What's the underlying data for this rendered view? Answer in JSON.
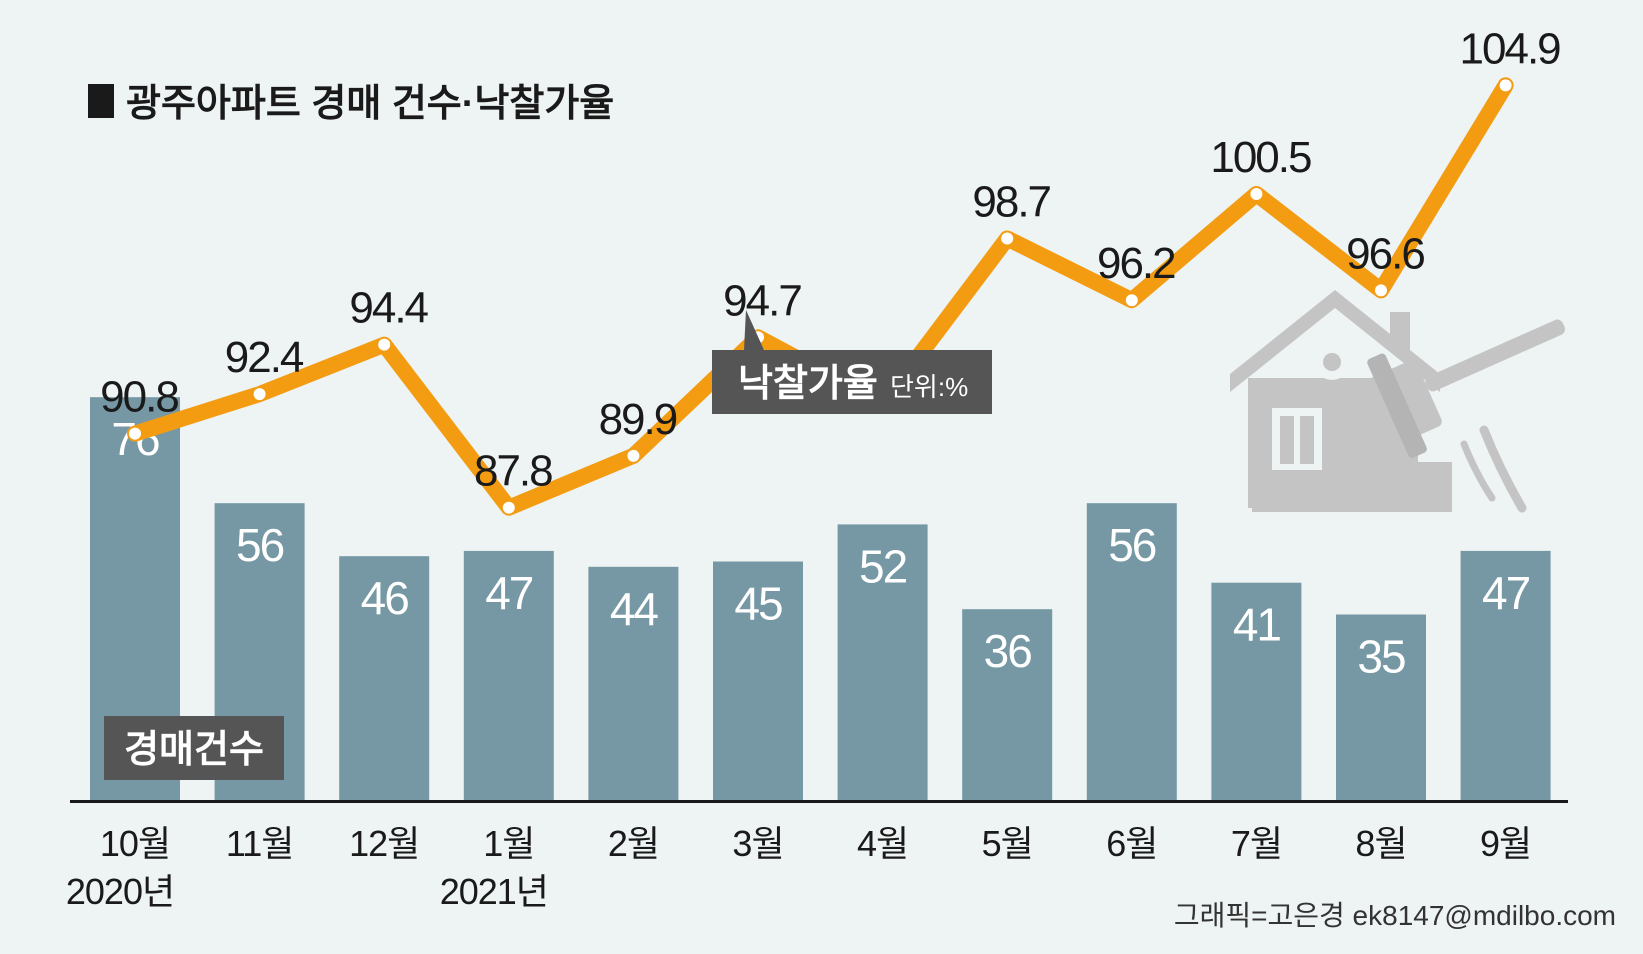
{
  "chart_data": {
    "type": "bar",
    "title": "광주아파트 경매 건수·낙찰가율",
    "categories": [
      "10월",
      "11월",
      "12월",
      "1월",
      "2월",
      "3월",
      "4월",
      "5월",
      "6월",
      "7월",
      "8월",
      "9월"
    ],
    "year_labels": [
      {
        "category_index": 0,
        "label": "2020년"
      },
      {
        "category_index": 3,
        "label": "2021년"
      }
    ],
    "series": [
      {
        "name": "경매건수",
        "type": "bar",
        "values": [
          76,
          56,
          46,
          47,
          44,
          45,
          52,
          36,
          56,
          41,
          35,
          47
        ],
        "color": "#7598a4"
      },
      {
        "name": "낙찰가율",
        "type": "line",
        "unit_label": "단위:%",
        "values": [
          90.8,
          92.4,
          94.4,
          87.8,
          89.9,
          94.7,
          92.0,
          98.7,
          96.2,
          100.5,
          96.6,
          104.9
        ],
        "color": "#f39c12"
      }
    ],
    "legend_labels": {
      "bar": "경매건수",
      "line": "낙찰가율",
      "line_unit": "단위:%"
    },
    "grid": false
  },
  "credit": "그래픽=고은경 ek8147@mdilbo.com",
  "colors": {
    "background": "#eef3f3",
    "bar": "#7598a4",
    "line": "#f39c12",
    "tag": "#555555",
    "illustration": "#c4c4c4"
  },
  "icons": [
    "house-auction-gavel-icon"
  ]
}
